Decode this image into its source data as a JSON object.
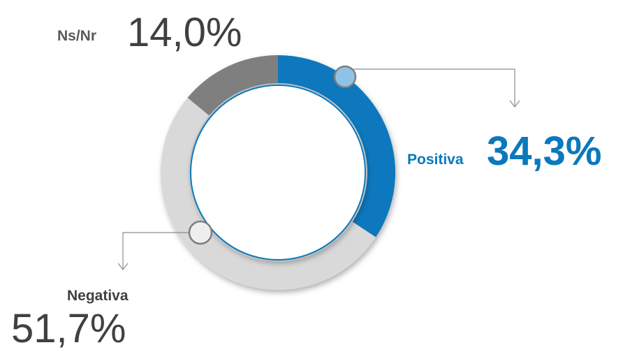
{
  "chart_data": {
    "type": "donut",
    "categories": [
      "Positiva",
      "Negativa",
      "Ns/Nr"
    ],
    "values": [
      34.3,
      51.7,
      14.0
    ],
    "value_labels": [
      "34,3%",
      "51,7%",
      "14,0%"
    ],
    "colors": [
      "#0a78bd",
      "#d9d9d9",
      "#7f7f7f"
    ]
  }
}
